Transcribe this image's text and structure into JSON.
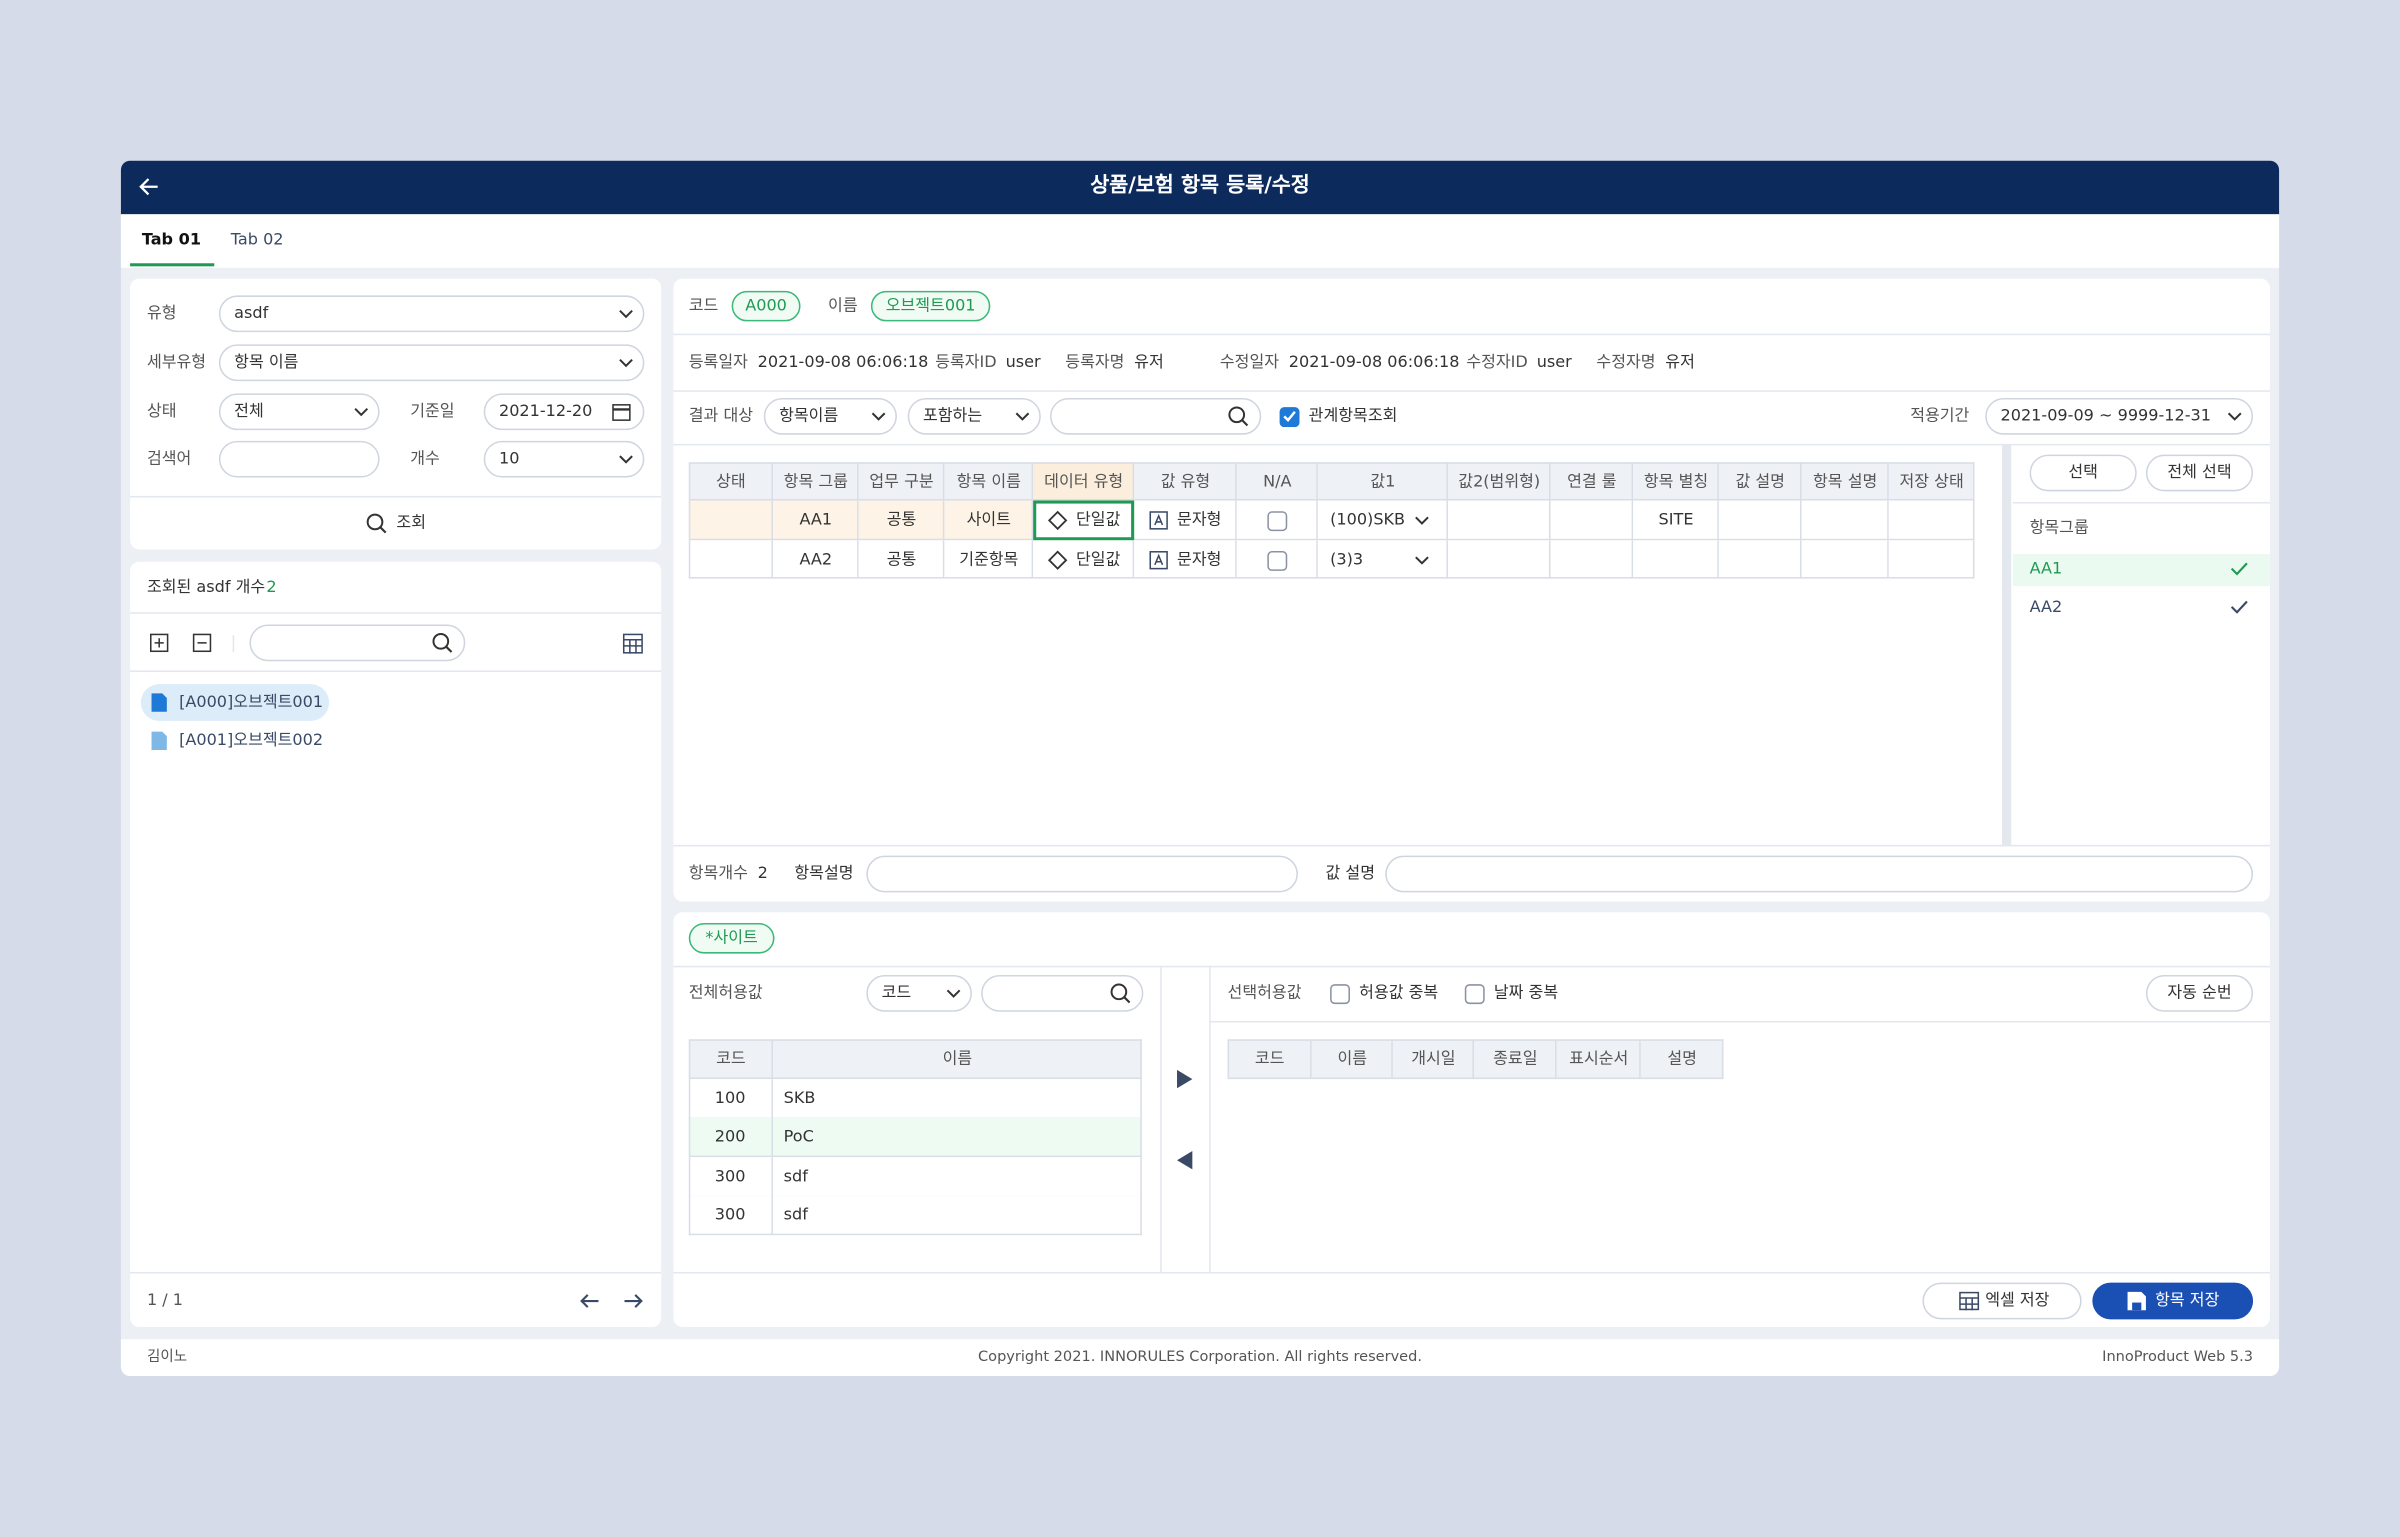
{
  "header": {
    "title": "상품/보험 항목 등록/수정"
  },
  "tabs": [
    "Tab 01",
    "Tab 02"
  ],
  "search": {
    "type_label": "유형",
    "type_value": "asdf",
    "subtype_label": "세부유형",
    "subtype_value": "항목 이름",
    "status_label": "상태",
    "status_value": "전체",
    "date_label": "기준일",
    "date_value": "2021-12-20",
    "keyword_label": "검색어",
    "count_label": "개수",
    "count_value": 10,
    "button": "조회"
  },
  "tree": {
    "title": "조회된 asdf 개수",
    "count": 2,
    "items": [
      "[A000]오브젝트001",
      "[A001]오브젝트002"
    ],
    "pagination": "1 / 1"
  },
  "detail": {
    "code_label": "코드",
    "code": "A000",
    "name_label": "이름",
    "name": "오브젝트001",
    "meta": [
      {
        "label": "등록일자",
        "value": "2021-09-08 06:06:18"
      },
      {
        "label": "등록자ID",
        "value": "user"
      },
      {
        "label": "등록자명",
        "value": "유저"
      },
      {
        "label": "수정일자",
        "value": "2021-09-08 06:06:18"
      },
      {
        "label": "수정자ID",
        "value": "user"
      },
      {
        "label": "수정자명",
        "value": "유저"
      }
    ],
    "filter": {
      "label": "결과 대상",
      "target": "항목이름",
      "condition": "포함하는",
      "related_check": "관계항목조회",
      "period_label": "적용기간",
      "period": "2021-09-09 ~ 9999-12-31"
    },
    "table": {
      "columns": [
        "상태",
        "항목 그룹",
        "업무 구분",
        "항목 이름",
        "데이터 유형",
        "값 유형",
        "N/A",
        "값1",
        "값2(범위형)",
        "연결 룰",
        "항목 별칭",
        "값 설명",
        "항목 설명",
        "저장 상태"
      ],
      "rows": [
        {
          "group": "AA1",
          "work": "공통",
          "name": "사이트",
          "data_type": "단일값",
          "value_type": "문자형",
          "value1": "(100)SKB",
          "alias": "SITE"
        },
        {
          "group": "AA2",
          "work": "공통",
          "name": "기준항목",
          "data_type": "단일값",
          "value_type": "문자형",
          "value1": "(3)3"
        }
      ]
    },
    "side": {
      "select": "선택",
      "select_all": "전체 선택",
      "group_label": "항목그룹",
      "groups": [
        "AA1",
        "AA2"
      ]
    },
    "footer": {
      "count_label": "항목개수",
      "count": 2,
      "desc_label": "항목설명",
      "value_desc_label": "값 설명"
    }
  },
  "values": {
    "tag": "*사이트",
    "all_label": "전체허용값",
    "search_by": "코드",
    "all_table": {
      "columns": [
        "코드",
        "이름"
      ],
      "rows": [
        [
          100,
          "SKB"
        ],
        [
          200,
          "PoC"
        ],
        [
          300,
          "sdf"
        ],
        [
          300,
          "sdf"
        ]
      ]
    },
    "selected_label": "선택허용값",
    "dup_value": "허용값 중복",
    "dup_date": "날짜 중복",
    "auto_order": "자동 순번",
    "selected_table": {
      "columns": [
        "코드",
        "이름",
        "개시일",
        "종료일",
        "표시순서",
        "설명"
      ]
    },
    "excel": "엑셀 저장",
    "save": "항목 저장"
  },
  "footer": {
    "user": "김이노",
    "copyright": "Copyright 2021. INNORULES Corporation. All rights reserved.",
    "version": "InnoProduct Web 5.3"
  }
}
